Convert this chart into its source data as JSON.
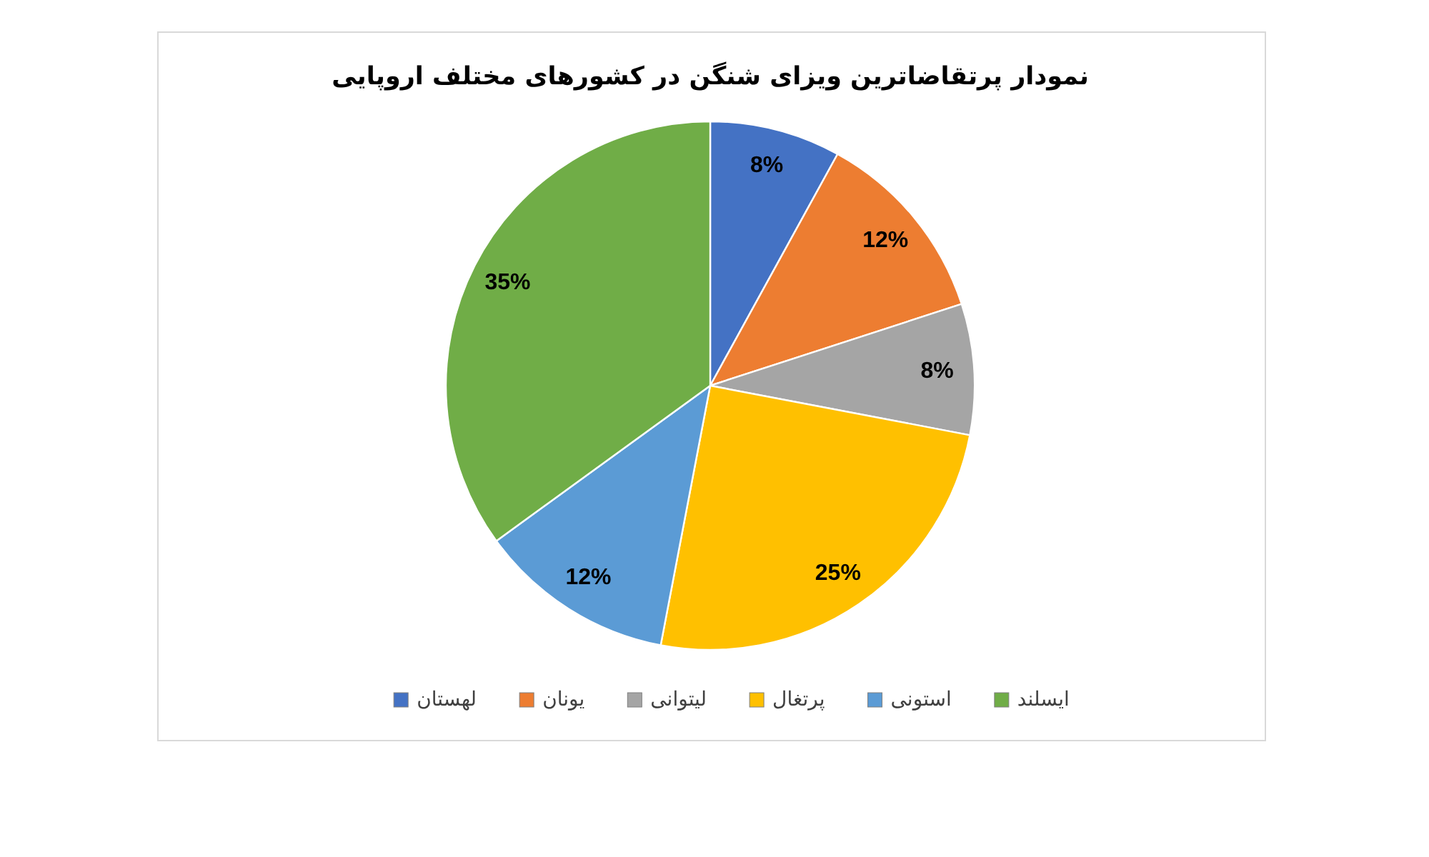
{
  "chart_data": {
    "type": "pie",
    "title": "نمودار پرتقاضاترین ویزای شنگن در کشورهای مختلف اروپایی",
    "categories": [
      "لهستان",
      "یونان",
      "لیتوانی",
      "پرتغال",
      "استونی",
      "ایسلند"
    ],
    "values": [
      8,
      12,
      8,
      25,
      12,
      35
    ],
    "colors": [
      "#4472c4",
      "#ed7d31",
      "#a5a5a5",
      "#ffc000",
      "#5b9bd5",
      "#70ad47"
    ],
    "value_labels": [
      "8%",
      "12%",
      "8%",
      "25%",
      "12%",
      "35%"
    ],
    "legend": "bottom"
  }
}
